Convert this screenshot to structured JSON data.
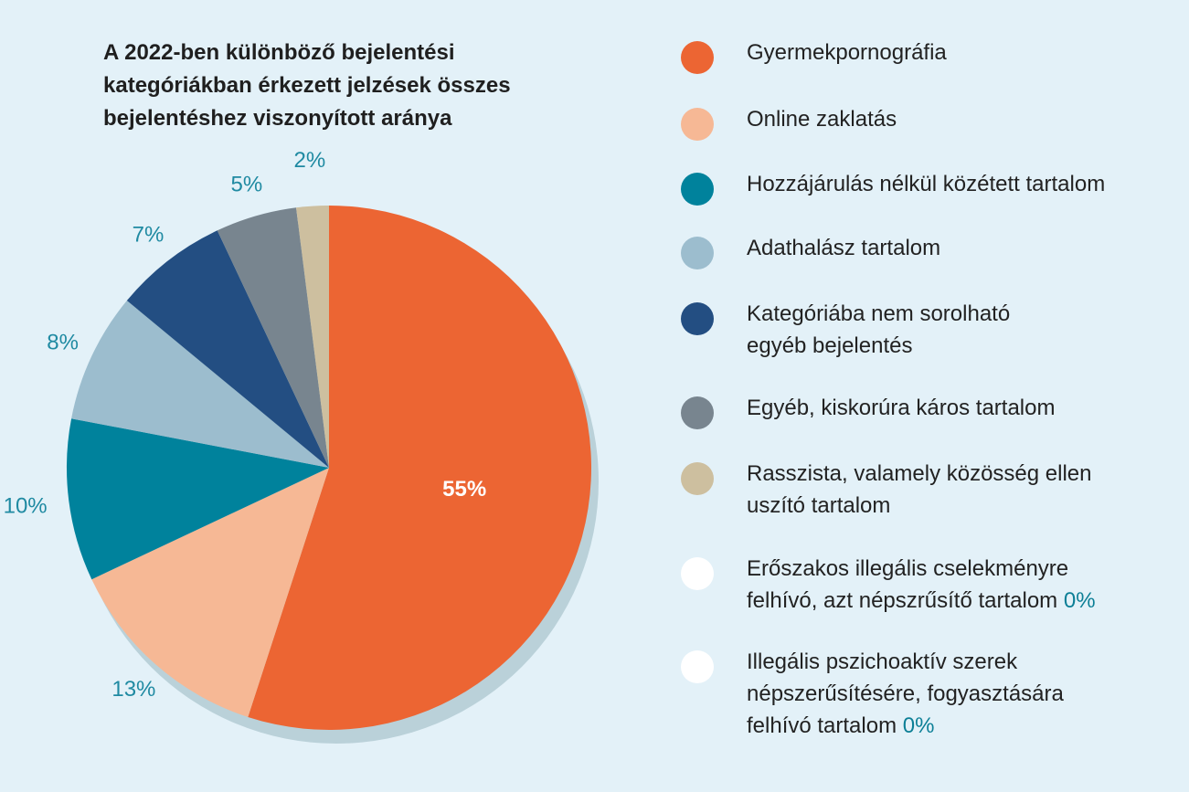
{
  "chart_data": {
    "type": "pie",
    "title": "A 2022-ben különböző bejelentési\nkategóriákban érkezett jelzések összes\nbejelentéshez viszonyított aránya",
    "slices": [
      {
        "name": "Gyermekpornográfia",
        "value": 55,
        "label": "55%",
        "color": "#ec6533"
      },
      {
        "name": "Online zaklatás",
        "value": 13,
        "label": "13%",
        "color": "#f6b895"
      },
      {
        "name": "Hozzájárulás nélkül közétett tartalom",
        "value": 10,
        "label": "10%",
        "color": "#00829c"
      },
      {
        "name": "Adathalász tartalom",
        "value": 8,
        "label": "8%",
        "color": "#9cbdce"
      },
      {
        "name": "Kategóriába nem sorolható\negyéb bejelentés",
        "value": 7,
        "label": "7%",
        "color": "#234e82"
      },
      {
        "name": "Egyéb, kiskorúra káros tartalom",
        "value": 5,
        "label": "5%",
        "color": "#78858f"
      },
      {
        "name": "Rasszista, valamely közösség ellen\nuszító tartalom",
        "value": 2,
        "label": "2%",
        "color": "#cdbf9f"
      },
      {
        "name": "Erőszakos illegális cselekményre\nfelhívó, azt népszrűsítő tartalom",
        "value": 0,
        "label": "0%",
        "color": "#ffffff"
      },
      {
        "name": "Illegális pszichoaktív szerek\nnépszerűsítésére, fogyasztására\nfelhívó tartalom",
        "value": 0,
        "label": "0%",
        "color": "#ffffff"
      }
    ],
    "legend_position": "right",
    "label_colors": {
      "inside": "#ffffff",
      "outside": "#1f8aa2"
    },
    "shadow_color": "#bad1d9"
  }
}
